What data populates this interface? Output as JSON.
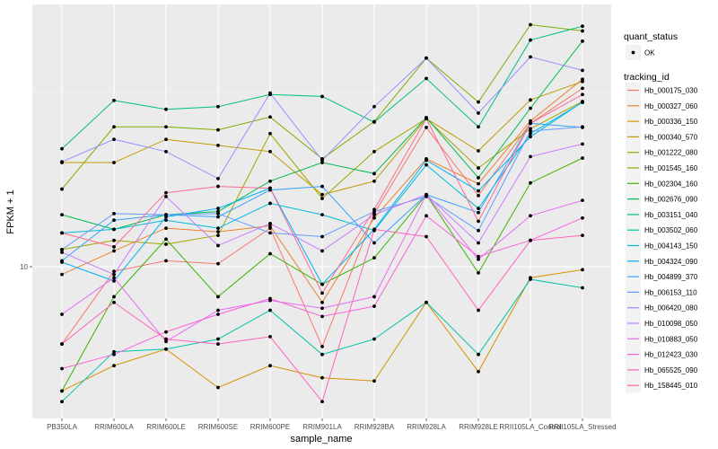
{
  "chart_data": {
    "type": "line",
    "title": "",
    "xlabel": "sample_name",
    "ylabel": "FPKM + 1",
    "y_scale": "log10",
    "y_ticks": [
      10
    ],
    "y_tick_labels": [
      "10"
    ],
    "ylim": [
      3.8,
      55
    ],
    "grid": true,
    "legend_position": "right",
    "categories": [
      "PB350LA",
      "RRIM600LA",
      "RRIM600LE",
      "RRIM600SE",
      "RRIM600PE",
      "RRIM901LA",
      "RRIM928BA",
      "RRIM928LA",
      "RRIM928LE",
      "RRII105LA_Control",
      "RRII105LA_Stressed"
    ],
    "point_legend": {
      "title": "quant_status",
      "items": [
        "OK"
      ]
    },
    "series_legend_title": "tracking_id",
    "series": [
      {
        "name": "Hb_000175_030",
        "color": "#F8766D",
        "values": [
          6.0,
          9.7,
          10.4,
          10.2,
          12.9,
          5.9,
          14.2,
          25.1,
          16.0,
          25.8,
          32.5
        ]
      },
      {
        "name": "Hb_000327_060",
        "color": "#EA8331",
        "values": [
          9.5,
          11.1,
          12.9,
          12.6,
          13.1,
          7.9,
          13.8,
          20.4,
          17.3,
          26.2,
          34.5
        ]
      },
      {
        "name": "Hb_000336_150",
        "color": "#D89000",
        "values": [
          4.4,
          5.2,
          5.8,
          4.5,
          5.2,
          4.8,
          4.7,
          7.9,
          5.0,
          9.3,
          9.8
        ]
      },
      {
        "name": "Hb_000340_570",
        "color": "#C09B00",
        "values": [
          19.9,
          19.9,
          23.2,
          22.3,
          21.4,
          16.1,
          17.6,
          26.6,
          21.5,
          30.1,
          34.0
        ]
      },
      {
        "name": "Hb_001222_080",
        "color": "#A3A500",
        "values": [
          11.2,
          11.9,
          11.6,
          12.3,
          24.1,
          15.7,
          21.4,
          26.6,
          19.2,
          24.9,
          29.8
        ]
      },
      {
        "name": "Hb_001545_160",
        "color": "#7CAE00",
        "values": [
          16.7,
          25.2,
          25.2,
          24.7,
          26.9,
          20.4,
          26.1,
          39.7,
          29.7,
          49.5,
          47.5
        ]
      },
      {
        "name": "Hb_002304_160",
        "color": "#39B600",
        "values": [
          4.4,
          8.2,
          12.0,
          8.2,
          10.9,
          8.9,
          10.6,
          16.1,
          9.6,
          17.4,
          20.5
        ]
      },
      {
        "name": "Hb_002676_090",
        "color": "#00BB4E",
        "values": [
          14.1,
          12.8,
          14.1,
          14.4,
          17.6,
          19.9,
          18.5,
          26.8,
          18.0,
          28.5,
          44.4
        ]
      },
      {
        "name": "Hb_003151_040",
        "color": "#00BF7D",
        "values": [
          21.8,
          30.0,
          28.3,
          28.8,
          31.2,
          30.8,
          26.0,
          34.7,
          25.2,
          44.7,
          49.0
        ]
      },
      {
        "name": "Hb_003502_060",
        "color": "#00C1A7",
        "values": [
          4.1,
          5.7,
          5.8,
          6.2,
          7.5,
          5.6,
          6.2,
          7.9,
          5.6,
          9.2,
          8.7
        ]
      },
      {
        "name": "Hb_004143_150",
        "color": "#00BCD8",
        "values": [
          12.5,
          12.8,
          13.6,
          12.9,
          15.2,
          14.1,
          12.7,
          19.6,
          14.7,
          24.1,
          29.6
        ]
      },
      {
        "name": "Hb_004324_090",
        "color": "#00B0F6",
        "values": [
          10.3,
          9.1,
          13.9,
          14.7,
          16.8,
          8.9,
          12.8,
          20.2,
          16.5,
          23.6,
          29.7
        ]
      },
      {
        "name": "Hb_004899_370",
        "color": "#35A2FF",
        "values": [
          10.4,
          13.6,
          14.1,
          13.9,
          16.6,
          17.0,
          11.7,
          16.1,
          14.3,
          25.8,
          25.1
        ]
      },
      {
        "name": "Hb_006153_110",
        "color": "#619CFF",
        "values": [
          11.2,
          14.2,
          14.1,
          14.2,
          12.5,
          12.2,
          14.4,
          15.9,
          12.7,
          24.5,
          25.2
        ]
      },
      {
        "name": "Hb_006420_080",
        "color": "#9590FF",
        "values": [
          20.0,
          23.2,
          21.4,
          17.9,
          31.5,
          20.2,
          28.8,
          39.7,
          27.6,
          40.0,
          36.6
        ]
      },
      {
        "name": "Hb_010098_050",
        "color": "#C77CFF",
        "values": [
          11.0,
          9.5,
          15.9,
          11.5,
          13.3,
          11.1,
          14.1,
          16.1,
          11.7,
          20.7,
          22.5
        ]
      },
      {
        "name": "Hb_010883_050",
        "color": "#E76BF3",
        "values": [
          7.3,
          9.3,
          6.1,
          7.5,
          8.0,
          7.6,
          8.2,
          16.1,
          10.5,
          14.0,
          15.5
        ]
      },
      {
        "name": "Hb_012423_030",
        "color": "#FA62DB",
        "values": [
          5.1,
          5.6,
          6.5,
          7.3,
          8.1,
          7.2,
          7.7,
          14.0,
          10.7,
          11.9,
          13.8
        ]
      },
      {
        "name": "Hb_065525_090",
        "color": "#FF62BC",
        "values": [
          6.0,
          7.9,
          6.2,
          6.0,
          6.3,
          4.1,
          12.8,
          12.2,
          7.5,
          11.9,
          12.3
        ]
      },
      {
        "name": "Hb_158445_010",
        "color": "#FF6C91",
        "values": [
          12.5,
          11.4,
          16.3,
          17.0,
          16.8,
          8.4,
          14.6,
          26.6,
          13.5,
          25.8,
          31.2
        ]
      }
    ]
  }
}
